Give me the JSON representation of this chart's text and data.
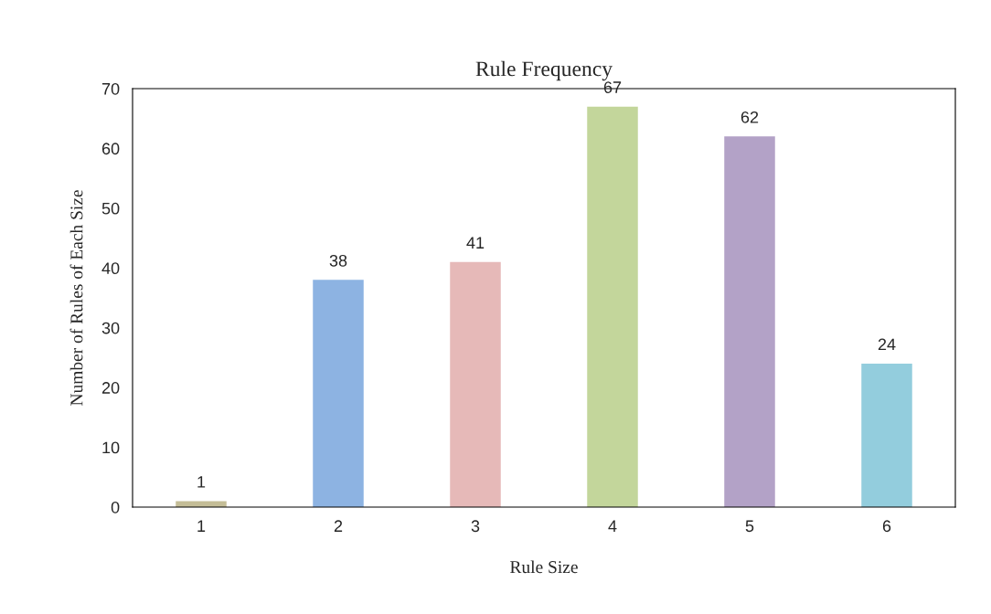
{
  "chart_data": {
    "type": "bar",
    "title": "Rule Frequency",
    "xlabel": "Rule Size",
    "ylabel": "Number of Rules of Each Size",
    "categories": [
      "1",
      "2",
      "3",
      "4",
      "5",
      "6"
    ],
    "values": [
      1,
      38,
      41,
      67,
      62,
      24
    ],
    "colors": [
      "#c4bd97",
      "#8db3e2",
      "#e6b9b8",
      "#c3d69b",
      "#b3a2c7",
      "#93cddd"
    ],
    "ylim": [
      0,
      70
    ],
    "yticks": [
      0,
      10,
      20,
      30,
      40,
      50,
      60,
      70
    ],
    "data_labels": true,
    "grid": false,
    "legend": false
  }
}
